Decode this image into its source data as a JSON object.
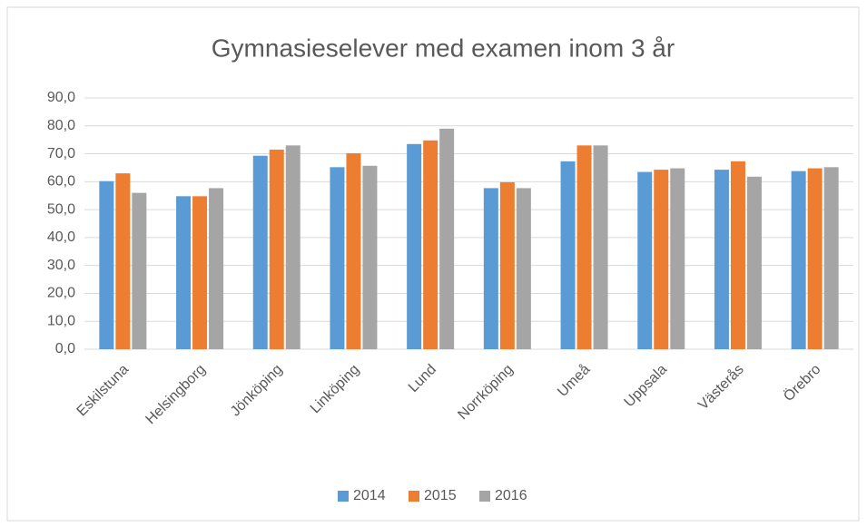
{
  "chart_data": {
    "type": "bar",
    "title": "Gymnasieselever  med examen inom 3 år",
    "categories": [
      "Eskilstuna",
      "Helsingborg",
      "Jönköping",
      "Linköping",
      "Lund",
      "Norrköping",
      "Umeå",
      "Uppsala",
      "Västerås",
      "Örebro"
    ],
    "series": [
      {
        "name": "2014",
        "color": "#5b9bd5",
        "values": [
          60.2,
          54.8,
          69.3,
          65.2,
          73.5,
          57.7,
          67.3,
          63.5,
          64.3,
          63.8
        ]
      },
      {
        "name": "2015",
        "color": "#ed7d31",
        "values": [
          63.0,
          54.8,
          71.5,
          70.2,
          74.8,
          59.8,
          73.0,
          64.3,
          67.3,
          64.8
        ]
      },
      {
        "name": "2016",
        "color": "#a5a5a5",
        "values": [
          56.0,
          57.7,
          73.0,
          65.7,
          79.0,
          57.7,
          73.0,
          64.8,
          61.8,
          65.2
        ]
      }
    ],
    "ylim": [
      0,
      90
    ],
    "yticks": [
      {
        "value": 0,
        "label": "0,0"
      },
      {
        "value": 10,
        "label": "10,0"
      },
      {
        "value": 20,
        "label": "20,0"
      },
      {
        "value": 30,
        "label": "30,0"
      },
      {
        "value": 40,
        "label": "40,0"
      },
      {
        "value": 50,
        "label": "50,0"
      },
      {
        "value": 60,
        "label": "60,0"
      },
      {
        "value": 70,
        "label": "70,0"
      },
      {
        "value": 80,
        "label": "80,0"
      },
      {
        "value": 90,
        "label": "90,0"
      }
    ],
    "grid": true,
    "legend": "bottom"
  }
}
